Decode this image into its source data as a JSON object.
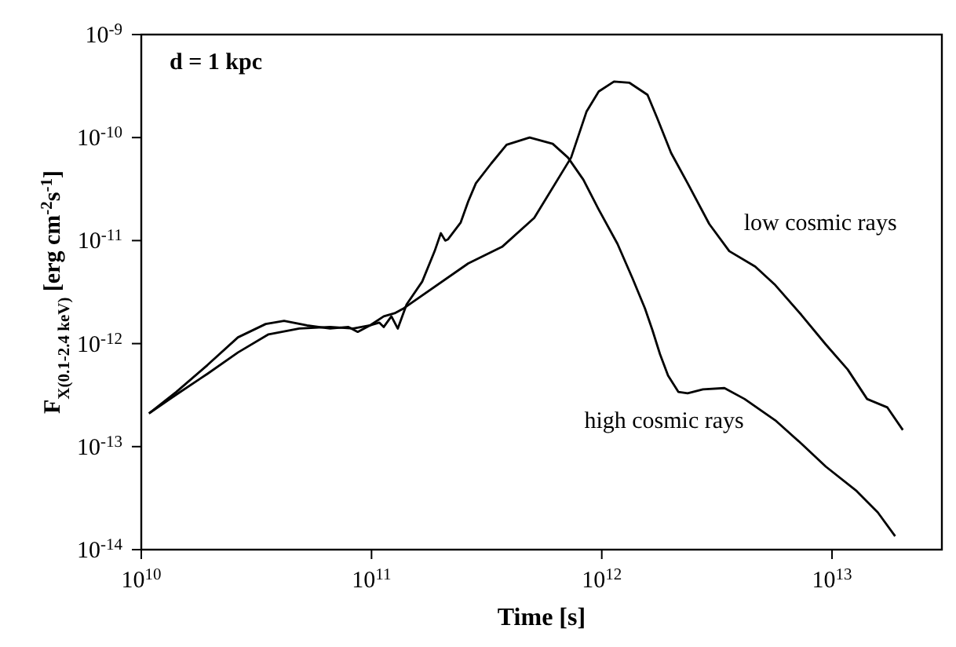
{
  "chart_data": {
    "type": "line",
    "xlabel": "Time [s]",
    "ylabel": "F$_{X(0.1-2.4 keV)}$ [erg cm$^{-2}$s$^{-1}$]",
    "annotations": [
      "d = 1 kpc"
    ],
    "log": "xy",
    "grid": false,
    "legend": false,
    "marker": "none",
    "line_style": "solid",
    "xlim": [
      10000000000.0,
      30000000000000.0
    ],
    "xticks": [
      {
        "value": 10000000000.0,
        "label": "10$^{10}$"
      },
      {
        "value": 100000000000.0,
        "label": "10$^{11}$"
      },
      {
        "value": 1000000000000.0,
        "label": "10$^{12}$"
      },
      {
        "value": 10000000000000.0,
        "label": "10$^{13}$"
      }
    ],
    "ylim": [
      1e-14,
      1e-09
    ],
    "yticks": [
      {
        "value": 1e-14,
        "label": "10$^{-14}$"
      },
      {
        "value": 1e-13,
        "label": "10$^{-13}$"
      },
      {
        "value": 1e-12,
        "label": "10$^{-12}$"
      },
      {
        "value": 1e-11,
        "label": "10$^{-11}$"
      },
      {
        "value": 1e-10,
        "label": "10$^{-10}$"
      },
      {
        "value": 1e-09,
        "label": "10$^{-9}$"
      }
    ],
    "series": [
      {
        "name": "low cosmic rays",
        "color": "#000000",
        "x": [
          10800000000.0,
          14200000000.0,
          19400000000.0,
          26300000000.0,
          35700000000.0,
          48600000000.0,
          66100000000.0,
          83200000000.0,
          98400000000.0,
          113000000000.0,
          126000000000.0,
          138000000000.0,
          263000000000.0,
          369000000000.0,
          509000000000.0,
          736000000000.0,
          858000000000.0,
          970000000000.0,
          1130000000000.0,
          1320000000000.0,
          1580000000000.0,
          1740000000000.0,
          2000000000000.0,
          2360000000000.0,
          2930000000000.0,
          3580000000000.0,
          4640000000000.0,
          5670000000000.0,
          7360000000000.0,
          9400000000000.0,
          11700000000000.0,
          14200000000000.0,
          17400000000000.0,
          20300000000000.0
        ],
        "values": [
          2.1e-13,
          3.2e-13,
          5.1e-13,
          8.2e-13,
          1.23e-12,
          1.4e-12,
          1.45e-12,
          1.4e-12,
          1.5e-12,
          1.84e-12,
          1.97e-12,
          2.2e-12,
          6e-12,
          8.7e-12,
          1.66e-11,
          6.4e-11,
          1.78e-10,
          2.8e-10,
          3.5e-10,
          3.4e-10,
          2.6e-10,
          1.55e-10,
          7.1e-11,
          3.6e-11,
          1.45e-11,
          7.9e-12,
          5.6e-12,
          3.7e-12,
          1.9e-12,
          9.8e-13,
          5.6e-13,
          2.9e-13,
          2.4e-13,
          1.45e-13
        ]
      },
      {
        "name": "high cosmic rays",
        "color": "#000000",
        "x": [
          10800000000.0,
          14200000000.0,
          19400000000.0,
          26300000000.0,
          34700000000.0,
          41700000000.0,
          52500000000.0,
          66100000000.0,
          79400000000.0,
          87100000000.0,
          98400000000.0,
          108000000000.0,
          113000000000.0,
          122000000000.0,
          130000000000.0,
          142000000000.0,
          166000000000.0,
          188000000000.0,
          200000000000.0,
          209000000000.0,
          215000000000.0,
          244000000000.0,
          263000000000.0,
          284000000000.0,
          331000000000.0,
          386000000000.0,
          486000000000.0,
          612000000000.0,
          713000000000.0,
          832000000000.0,
          970000000000.0,
          1170000000000.0,
          1360000000000.0,
          1540000000000.0,
          1660000000000.0,
          1790000000000.0,
          1940000000000.0,
          2150000000000.0,
          2360000000000.0,
          2750000000000.0,
          3410000000000.0,
          4170000000000.0,
          5670000000000.0,
          7360000000000.0,
          9400000000000.0,
          12800000000000.0,
          15800000000000.0,
          18800000000000.0
        ],
        "values": [
          2.1e-13,
          3.4e-13,
          6.2e-13,
          1.15e-12,
          1.55e-12,
          1.66e-12,
          1.5e-12,
          1.4e-12,
          1.45e-12,
          1.3e-12,
          1.5e-12,
          1.6e-12,
          1.45e-12,
          1.84e-12,
          1.4e-12,
          2.4e-12,
          4e-12,
          7.9e-12,
          1.18e-11,
          1e-11,
          1.03e-11,
          1.5e-11,
          2.4e-11,
          3.6e-11,
          5.6e-11,
          8.5e-11,
          1e-10,
          8.7e-11,
          6.4e-11,
          3.9e-11,
          2e-11,
          9.3e-12,
          4.3e-12,
          2.2e-12,
          1.35e-12,
          7.9e-13,
          4.9e-13,
          3.4e-13,
          3.3e-13,
          3.6e-13,
          3.7e-13,
          2.9e-13,
          1.8e-13,
          1.07e-13,
          6.4e-14,
          3.7e-14,
          2.3e-14,
          1.35e-14
        ]
      }
    ]
  }
}
